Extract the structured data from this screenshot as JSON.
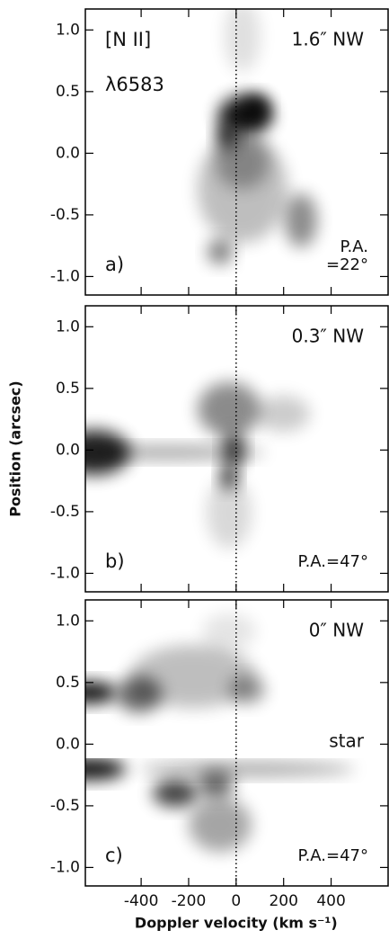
{
  "chart_data": [
    {
      "type": "image",
      "labels": [
        "[N II]",
        "λ6583"
      ],
      "offset": "1.6″ NW",
      "panel": "a)",
      "pa": [
        "P.A.",
        "=22°"
      ],
      "xlim": [
        -635,
        640
      ],
      "ylim": [
        -1.15,
        1.17
      ],
      "vline": 0,
      "xticks": [
        -400,
        -200,
        0,
        200,
        400
      ],
      "yticks": [
        {
          "value": -1,
          "label": "-1.0"
        },
        {
          "value": -0.5,
          "label": "-0.5"
        },
        {
          "value": 0,
          "label": "0.0"
        },
        {
          "value": 0.5,
          "label": "0.5"
        },
        {
          "value": 1,
          "label": "1.0"
        }
      ]
    },
    {
      "type": "image",
      "offset": "0.3″ NW",
      "panel": "b)",
      "pa": [
        "P.A.=47°"
      ],
      "ylabel": "Position (arcsec)",
      "xlim": [
        -635,
        640
      ],
      "ylim": [
        -1.15,
        1.17
      ],
      "vline": 0,
      "xticks": [
        -400,
        -200,
        0,
        200,
        400
      ],
      "yticks": [
        {
          "value": -1,
          "label": "-1.0"
        },
        {
          "value": -0.5,
          "label": "-0.5"
        },
        {
          "value": 0,
          "label": "0.0"
        },
        {
          "value": 0.5,
          "label": "0.5"
        },
        {
          "value": 1,
          "label": "1.0"
        }
      ]
    },
    {
      "type": "image",
      "offset": "0″ NW",
      "panel": "c)",
      "pa": [
        "P.A.=47°"
      ],
      "annotation": "star",
      "xlabel": "Doppler velocity (km s⁻¹)",
      "xlim": [
        -635,
        640
      ],
      "ylim": [
        -1.15,
        1.17
      ],
      "vline": 0,
      "xticks": [
        -400,
        -200,
        0,
        200,
        400
      ],
      "yticks": [
        {
          "value": -1,
          "label": "-1.0"
        },
        {
          "value": -0.5,
          "label": "-0.5"
        },
        {
          "value": 0,
          "label": "0.0"
        },
        {
          "value": 0.5,
          "label": "0.5"
        },
        {
          "value": 1,
          "label": "1.0"
        }
      ]
    }
  ]
}
